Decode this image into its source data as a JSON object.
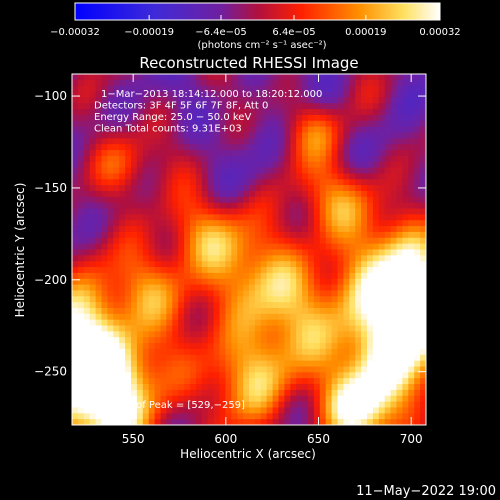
{
  "chart_data": {
    "type": "heatmap",
    "title": "Reconstructed RHESSI Image",
    "xlabel": "Heliocentric X (arcsec)",
    "ylabel": "Heliocentric Y (arcsec)",
    "xlim": [
      517,
      708
    ],
    "ylim": [
      -279,
      -88
    ],
    "x_ticks": [
      550,
      600,
      650,
      700
    ],
    "x_tick_labels": [
      "550",
      "600",
      "650",
      "700"
    ],
    "y_ticks": [
      -100,
      -150,
      -200,
      -250
    ],
    "y_tick_labels": [
      "−100",
      "−150",
      "−200",
      "−250"
    ],
    "colorbar": {
      "range": [
        -0.00032,
        0.00032
      ],
      "tick_values": [
        -0.00032,
        -0.00019,
        -6.4e-05,
        6.4e-05,
        0.00019,
        0.00032
      ],
      "tick_labels": [
        "−0.00032",
        "−0.00019",
        "−6.4e−05",
        "6.4e−05",
        "0.00019",
        "0.00032"
      ],
      "unit_text": "(photons cm⁻² s⁻¹ asec⁻²)"
    },
    "annotations": [
      "1−Mar−2013 18:14:12.000 to 18:20:12.000",
      "Detectors: 3F 4F 5F 6F 7F 8F, Att 0",
      "Energy Range: 25.0 − 50.0 keV",
      "Clean     Total counts: 9.31E+03"
    ],
    "peak_label": "Position of Peak = [529,−259]",
    "peak": [
      529,
      -259
    ],
    "grid": false
  },
  "footer_timestamp": "11−May−2022 19:00"
}
